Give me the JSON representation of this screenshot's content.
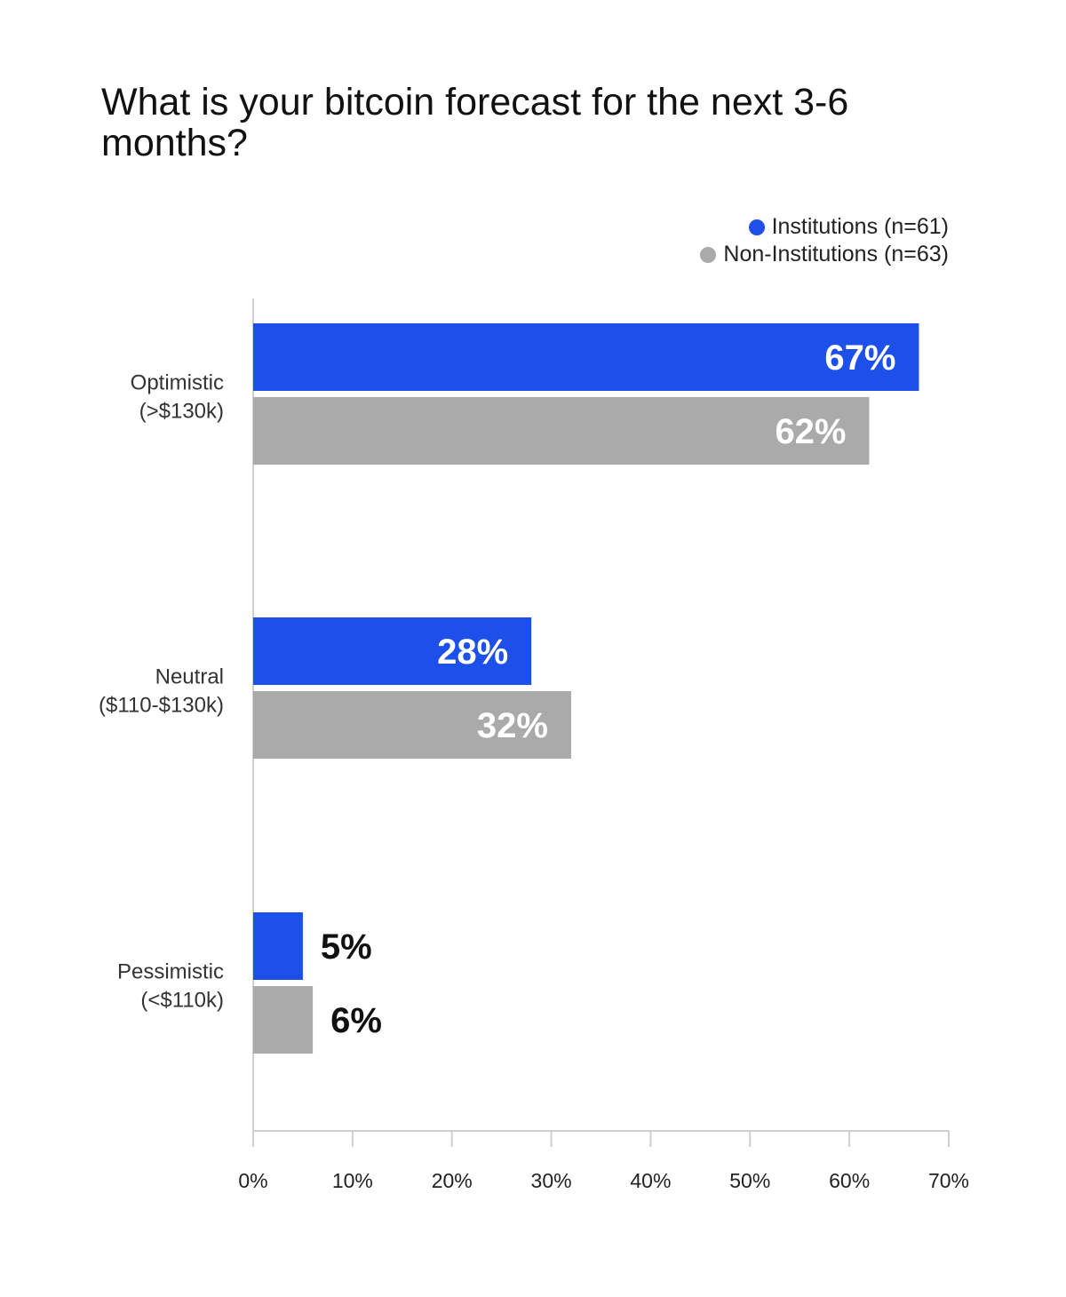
{
  "chart_data": {
    "type": "bar",
    "orientation": "horizontal",
    "title": "What is your bitcoin forecast for the next 3-6 months?",
    "categories": [
      [
        "Optimistic",
        "(>$130k)"
      ],
      [
        "Neutral",
        "($110-$130k)"
      ],
      [
        "Pessimistic",
        "(<$110k)"
      ]
    ],
    "series": [
      {
        "name": "Institutions (n=61)",
        "color": "#1d4fea",
        "values": [
          67,
          28,
          5
        ],
        "labels": [
          "67%",
          "28%",
          "5%"
        ]
      },
      {
        "name": "Non-Institutions (n=63)",
        "color": "#aaaaaa",
        "values": [
          62,
          32,
          6
        ],
        "labels": [
          "62%",
          "32%",
          "6%"
        ]
      }
    ],
    "xlim": [
      0,
      70
    ],
    "xticks": [
      0,
      10,
      20,
      30,
      40,
      50,
      60,
      70
    ],
    "xtick_labels": [
      "0%",
      "10%",
      "20%",
      "30%",
      "40%",
      "50%",
      "60%",
      "70%"
    ],
    "legend_position": "top-right",
    "grid": false
  }
}
